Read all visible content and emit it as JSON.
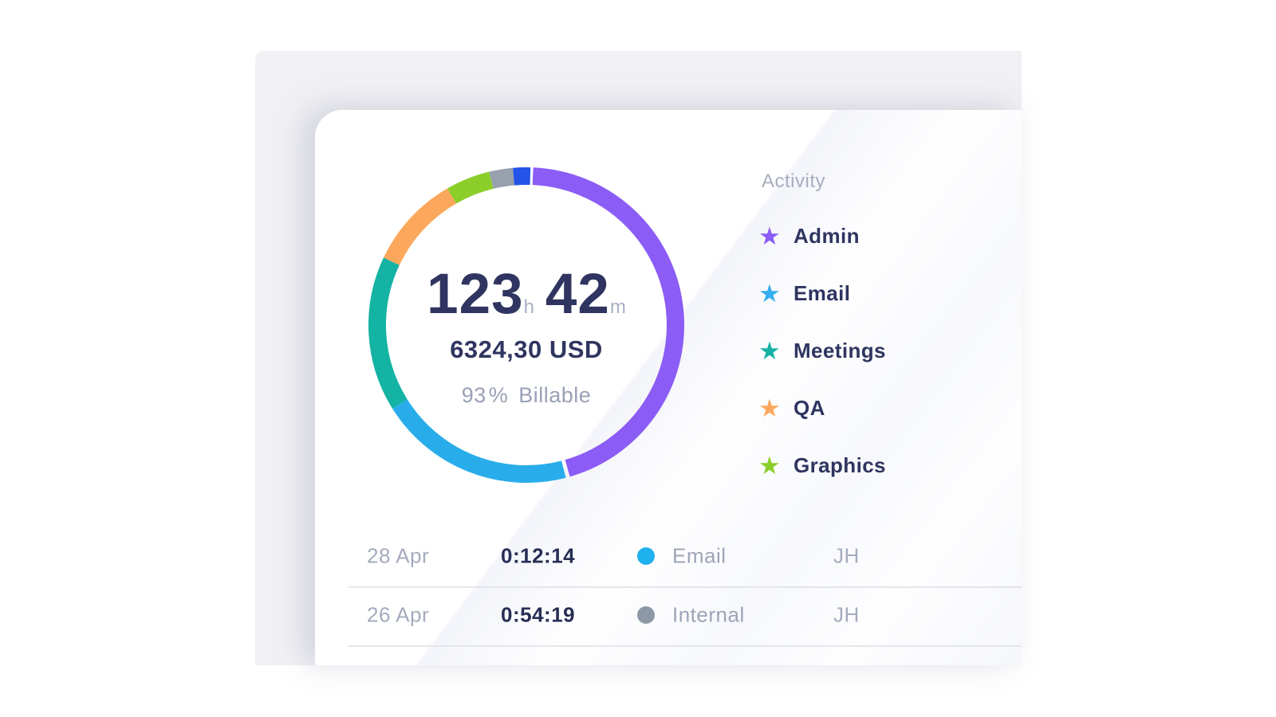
{
  "icons": {
    "star": "★"
  },
  "summary": {
    "hours": "123",
    "hours_unit": "h",
    "minutes": "42",
    "minutes_unit": "m",
    "amount": "6324,30 USD",
    "billable_value": "93 %",
    "billable_label": "Billable"
  },
  "legend": {
    "title": "Activity",
    "items": [
      {
        "label": "Admin",
        "color": "#8B5CF6"
      },
      {
        "label": "Email",
        "color": "#35AEEF"
      },
      {
        "label": "Meetings",
        "color": "#14B3A4"
      },
      {
        "label": "QA",
        "color": "#FBA85C"
      },
      {
        "label": "Graphics",
        "color": "#8BCE2A"
      }
    ]
  },
  "donut": {
    "stroke_width": 22,
    "segments": [
      {
        "name": "admin",
        "color": "#8B5CF6",
        "start": 2.5,
        "sweep": 161.5
      },
      {
        "name": "email",
        "color": "#29ADEA",
        "start": 165.5,
        "sweep": 72.5
      },
      {
        "name": "meetings",
        "color": "#14B3A4",
        "start": 238.0,
        "sweep": 57.3
      },
      {
        "name": "qa",
        "color": "#FBA85C",
        "start": 295.3,
        "sweep": 34.7
      },
      {
        "name": "graphics",
        "color": "#8BCE2A",
        "start": 330.0,
        "sweep": 16.4
      },
      {
        "name": "gray-segment",
        "color": "#97A0AC",
        "start": 346.4,
        "sweep": 8.7
      },
      {
        "name": "blue-segment",
        "color": "#2453E8",
        "start": 355.1,
        "sweep": 6.4
      }
    ]
  },
  "chart_data": {
    "type": "pie",
    "title": "Activity time distribution donut",
    "center_labels": [
      "123 h 42 m",
      "6324,30 USD",
      "93 % Billable"
    ],
    "legend_position": "right",
    "series": [
      {
        "label": "Admin",
        "color": "#8B5CF6",
        "percent": 44.9
      },
      {
        "label": "Email",
        "color": "#29ADEA",
        "percent": 20.1
      },
      {
        "label": "Meetings",
        "color": "#14B3A4",
        "percent": 15.9
      },
      {
        "label": "QA",
        "color": "#FBA85C",
        "percent": 9.6
      },
      {
        "label": "Graphics",
        "color": "#8BCE2A",
        "percent": 4.6
      },
      {
        "label": "",
        "color": "#97A0AC",
        "percent": 2.4
      },
      {
        "label": "",
        "color": "#2453E8",
        "percent": 1.8
      }
    ]
  },
  "table": {
    "rows": [
      {
        "date": "28 Apr",
        "duration": "0:12:14",
        "activity": "Email",
        "dot_color": "#1FB0EE",
        "initials": "JH"
      },
      {
        "date": "26 Apr",
        "duration": "0:54:19",
        "activity": "Internal",
        "dot_color": "#8C98A6",
        "initials": "JH"
      }
    ]
  }
}
